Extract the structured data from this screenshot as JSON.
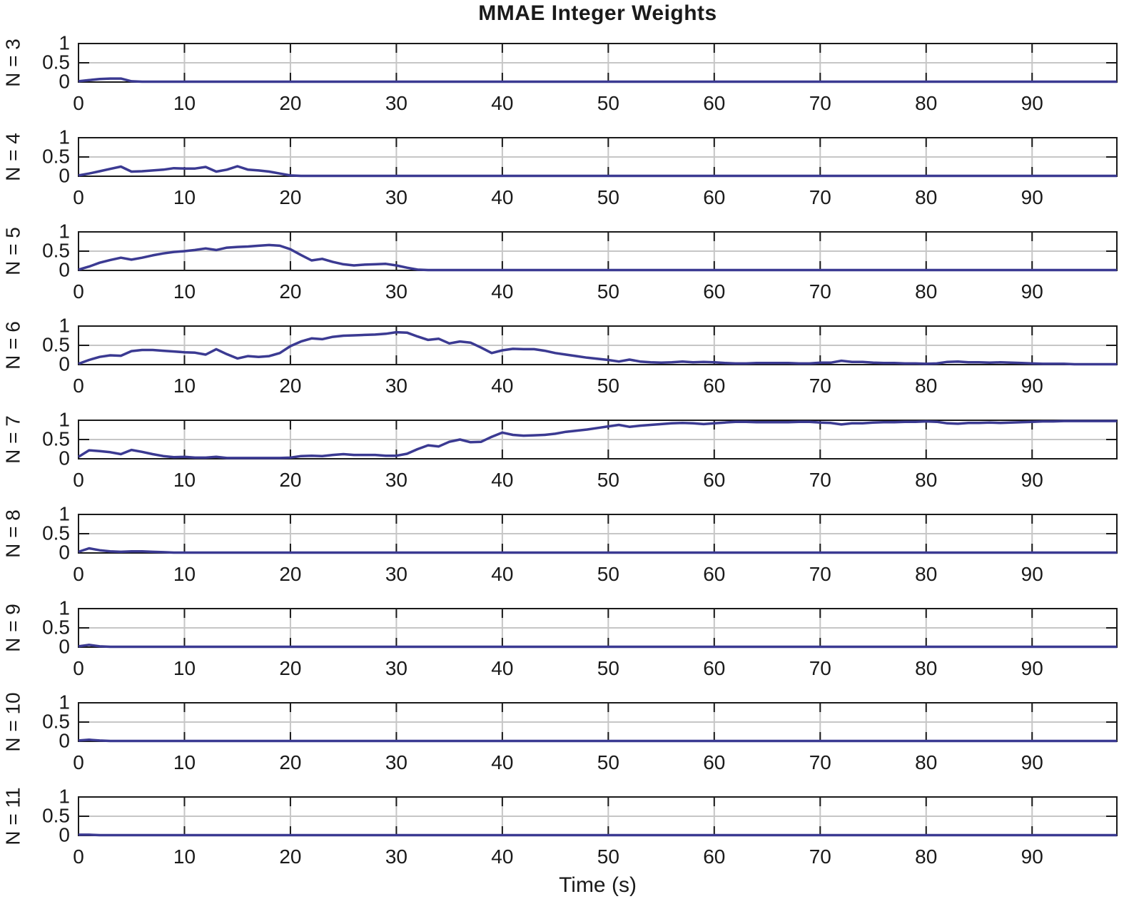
{
  "figure": {
    "title": "MMAE Integer Weights",
    "xlabel": "Time (s)",
    "line_color": "#3b3a92",
    "grid_color": "#c6c6c6",
    "axis_color": "#1a1a1a",
    "background": "#ffffff"
  },
  "chart_data": {
    "type": "line",
    "title": "MMAE Integer Weights",
    "xlabel": "Time (s)",
    "ylabel": "",
    "grid": true,
    "legend": "none",
    "xlim": [
      0,
      98
    ],
    "ylim": [
      0,
      1
    ],
    "x_ticks": [
      0,
      10,
      20,
      30,
      40,
      50,
      60,
      70,
      80,
      90
    ],
    "y_ticks": [
      0,
      0.5,
      1
    ],
    "y_tick_labels": [
      "0",
      "0.5",
      "1"
    ],
    "x_step": 1,
    "series": [
      {
        "name": "N = 3",
        "fill_to_end": 0.01,
        "values": [
          0.02,
          0.05,
          0.08,
          0.09,
          0.09,
          0.02,
          0.01,
          0.01,
          0.01,
          0.01
        ]
      },
      {
        "name": "N = 4",
        "fill_to_end": 0.01,
        "values": [
          0.02,
          0.07,
          0.13,
          0.19,
          0.25,
          0.12,
          0.13,
          0.15,
          0.17,
          0.21,
          0.2,
          0.2,
          0.24,
          0.12,
          0.17,
          0.26,
          0.17,
          0.15,
          0.12,
          0.07,
          0.02,
          0.01
        ]
      },
      {
        "name": "N = 5",
        "fill_to_end": 0.01,
        "values": [
          0.02,
          0.1,
          0.2,
          0.27,
          0.33,
          0.28,
          0.33,
          0.39,
          0.44,
          0.48,
          0.5,
          0.53,
          0.57,
          0.53,
          0.59,
          0.61,
          0.62,
          0.64,
          0.66,
          0.64,
          0.55,
          0.4,
          0.26,
          0.3,
          0.22,
          0.16,
          0.13,
          0.15,
          0.16,
          0.17,
          0.13,
          0.07,
          0.02,
          0.01
        ]
      },
      {
        "name": "N = 6",
        "fill_to_end": 0.01,
        "values": [
          0.02,
          0.12,
          0.2,
          0.24,
          0.23,
          0.35,
          0.38,
          0.38,
          0.36,
          0.34,
          0.32,
          0.31,
          0.26,
          0.4,
          0.27,
          0.16,
          0.22,
          0.2,
          0.22,
          0.3,
          0.48,
          0.6,
          0.68,
          0.66,
          0.72,
          0.75,
          0.76,
          0.77,
          0.78,
          0.8,
          0.84,
          0.83,
          0.73,
          0.64,
          0.67,
          0.55,
          0.6,
          0.57,
          0.44,
          0.3,
          0.37,
          0.41,
          0.4,
          0.4,
          0.36,
          0.3,
          0.26,
          0.22,
          0.18,
          0.15,
          0.12,
          0.08,
          0.13,
          0.08,
          0.06,
          0.05,
          0.06,
          0.08,
          0.06,
          0.07,
          0.06,
          0.04,
          0.03,
          0.03,
          0.04,
          0.04,
          0.04,
          0.04,
          0.03,
          0.03,
          0.05,
          0.05,
          0.1,
          0.07,
          0.07,
          0.05,
          0.04,
          0.04,
          0.03,
          0.03,
          0.02,
          0.03,
          0.07,
          0.08,
          0.06,
          0.06,
          0.05,
          0.06,
          0.05,
          0.04,
          0.03,
          0.02,
          0.02,
          0.02,
          0.01,
          0.01,
          0.01,
          0.01,
          0.01
        ]
      },
      {
        "name": "N = 7",
        "fill_to_end": 0.98,
        "values": [
          0.05,
          0.22,
          0.2,
          0.17,
          0.12,
          0.23,
          0.18,
          0.12,
          0.07,
          0.04,
          0.05,
          0.03,
          0.03,
          0.05,
          0.02,
          0.02,
          0.02,
          0.02,
          0.02,
          0.02,
          0.03,
          0.07,
          0.08,
          0.07,
          0.1,
          0.12,
          0.1,
          0.1,
          0.1,
          0.08,
          0.08,
          0.13,
          0.25,
          0.35,
          0.32,
          0.44,
          0.5,
          0.43,
          0.44,
          0.57,
          0.68,
          0.62,
          0.6,
          0.61,
          0.62,
          0.65,
          0.7,
          0.73,
          0.76,
          0.8,
          0.84,
          0.88,
          0.83,
          0.86,
          0.88,
          0.9,
          0.92,
          0.93,
          0.92,
          0.9,
          0.92,
          0.94,
          0.96,
          0.96,
          0.95,
          0.95,
          0.95,
          0.95,
          0.96,
          0.96,
          0.94,
          0.93,
          0.89,
          0.92,
          0.92,
          0.94,
          0.95,
          0.95,
          0.96,
          0.96,
          0.97,
          0.96,
          0.92,
          0.91,
          0.93,
          0.93,
          0.94,
          0.93,
          0.94,
          0.95,
          0.96,
          0.97,
          0.97,
          0.98,
          0.98,
          0.98,
          0.98,
          0.98,
          0.98
        ]
      },
      {
        "name": "N = 8",
        "fill_to_end": 0.01,
        "values": [
          0.03,
          0.12,
          0.07,
          0.04,
          0.03,
          0.04,
          0.04,
          0.03,
          0.02,
          0.01
        ]
      },
      {
        "name": "N = 9",
        "fill_to_end": 0.01,
        "values": [
          0.02,
          0.06,
          0.02,
          0.01
        ]
      },
      {
        "name": "N = 10",
        "fill_to_end": 0.01,
        "values": [
          0.02,
          0.04,
          0.02,
          0.01
        ]
      },
      {
        "name": "N = 11",
        "fill_to_end": 0.01,
        "values": [
          0.02,
          0.02,
          0.01
        ]
      }
    ]
  }
}
